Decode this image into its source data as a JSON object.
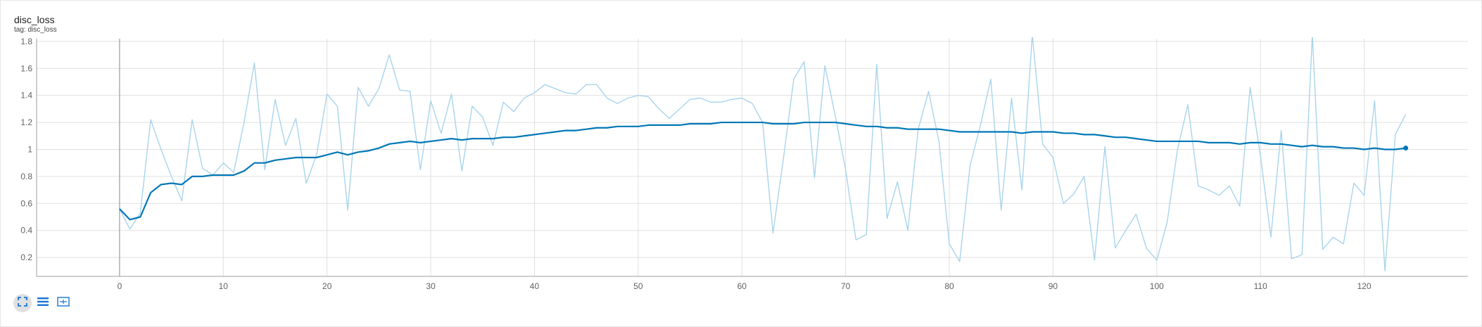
{
  "card": {
    "title": "disc_loss",
    "tag": "tag: disc_loss"
  },
  "toolbar": {
    "buttons": [
      {
        "icon": "fullscreen-icon",
        "active": true
      },
      {
        "icon": "toggle-log-scale-icon",
        "active": false
      },
      {
        "icon": "fit-domain-icon",
        "active": false
      }
    ]
  },
  "colors": {
    "smoothed": "#0077b6",
    "raw": "#a8d4ec",
    "grid": "#e0e0e0",
    "axis": "#9e9e9e",
    "tick_text": "#616161",
    "toolbar_icon": "#1976d2"
  },
  "chart_data": {
    "type": "line",
    "title": "disc_loss",
    "xlabel": "",
    "ylabel": "",
    "xlim": [
      -8,
      130
    ],
    "ylim": [
      0.06,
      1.82
    ],
    "x_ticks": [
      0,
      10,
      20,
      30,
      40,
      50,
      60,
      70,
      80,
      90,
      100,
      110,
      120
    ],
    "y_ticks": [
      0.2,
      0.4,
      0.6,
      0.8,
      1,
      1.2,
      1.4,
      1.6,
      1.8
    ],
    "y_tick_labels": [
      "0.2",
      "0.4",
      "0.6",
      "0.8",
      "1",
      "1.2",
      "1.4",
      "1.6",
      "1.8"
    ],
    "grid": true,
    "series": [
      {
        "role": "raw",
        "values": [
          0.56,
          0.41,
          0.53,
          1.22,
          1.0,
          0.8,
          0.62,
          1.22,
          0.86,
          0.81,
          0.9,
          0.83,
          1.2,
          1.64,
          0.85,
          1.37,
          1.03,
          1.23,
          0.75,
          0.96,
          1.41,
          1.32,
          0.55,
          1.46,
          1.32,
          1.45,
          1.7,
          1.44,
          1.43,
          0.85,
          1.36,
          1.12,
          1.41,
          0.84,
          1.32,
          1.24,
          1.03,
          1.35,
          1.28,
          1.38,
          1.42,
          1.48,
          1.45,
          1.42,
          1.41,
          1.48,
          1.48,
          1.38,
          1.34,
          1.38,
          1.4,
          1.39,
          1.3,
          1.23,
          1.3,
          1.37,
          1.38,
          1.35,
          1.35,
          1.37,
          1.38,
          1.34,
          1.2,
          0.38,
          0.93,
          1.52,
          1.65,
          0.79,
          1.62,
          1.25,
          0.85,
          0.33,
          0.37,
          1.63,
          0.49,
          0.76,
          0.4,
          1.15,
          1.43,
          1.06,
          0.3,
          0.17,
          0.88,
          1.18,
          1.52,
          0.55,
          1.38,
          0.7,
          1.85,
          1.04,
          0.94,
          0.6,
          0.67,
          0.8,
          0.18,
          1.02,
          0.27,
          0.4,
          0.52,
          0.27,
          0.18,
          0.46,
          1.0,
          1.33,
          0.73,
          0.7,
          0.66,
          0.73,
          0.58,
          1.46,
          0.95,
          0.35,
          1.14,
          0.19,
          0.22,
          1.85,
          0.26,
          0.35,
          0.3,
          0.75,
          0.66,
          1.36,
          0.1,
          1.11,
          1.26
        ]
      },
      {
        "role": "smoothed",
        "values": [
          0.56,
          0.48,
          0.5,
          0.68,
          0.74,
          0.75,
          0.74,
          0.8,
          0.8,
          0.81,
          0.81,
          0.81,
          0.84,
          0.9,
          0.9,
          0.92,
          0.93,
          0.94,
          0.94,
          0.94,
          0.96,
          0.98,
          0.96,
          0.98,
          0.99,
          1.01,
          1.04,
          1.05,
          1.06,
          1.05,
          1.06,
          1.07,
          1.08,
          1.07,
          1.08,
          1.08,
          1.08,
          1.09,
          1.09,
          1.1,
          1.11,
          1.12,
          1.13,
          1.14,
          1.14,
          1.15,
          1.16,
          1.16,
          1.17,
          1.17,
          1.17,
          1.18,
          1.18,
          1.18,
          1.18,
          1.19,
          1.19,
          1.19,
          1.2,
          1.2,
          1.2,
          1.2,
          1.2,
          1.19,
          1.19,
          1.19,
          1.2,
          1.2,
          1.2,
          1.2,
          1.19,
          1.18,
          1.17,
          1.17,
          1.16,
          1.16,
          1.15,
          1.15,
          1.15,
          1.15,
          1.14,
          1.13,
          1.13,
          1.13,
          1.13,
          1.13,
          1.13,
          1.12,
          1.13,
          1.13,
          1.13,
          1.12,
          1.12,
          1.11,
          1.11,
          1.1,
          1.09,
          1.09,
          1.08,
          1.07,
          1.06,
          1.06,
          1.06,
          1.06,
          1.06,
          1.05,
          1.05,
          1.05,
          1.04,
          1.05,
          1.05,
          1.04,
          1.04,
          1.03,
          1.02,
          1.03,
          1.02,
          1.02,
          1.01,
          1.01,
          1.0,
          1.01,
          1.0,
          1.0,
          1.01
        ]
      }
    ]
  }
}
